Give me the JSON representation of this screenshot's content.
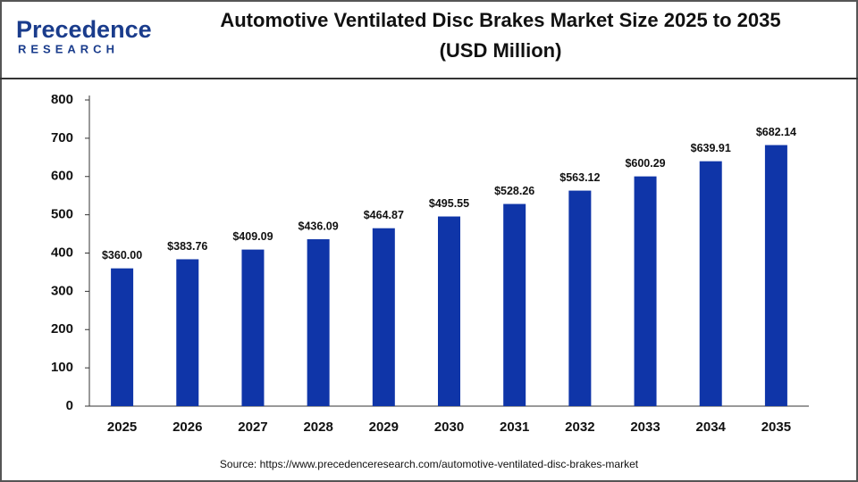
{
  "logo": {
    "name": "Precedence",
    "tagline": "RESEARCH"
  },
  "chart_data": {
    "type": "bar",
    "title": [
      "Automotive Ventilated Disc Brakes Market Size 2025 to 2035",
      "(USD Million)"
    ],
    "categories": [
      "2025",
      "2026",
      "2027",
      "2028",
      "2029",
      "2030",
      "2031",
      "2032",
      "2033",
      "2034",
      "2035"
    ],
    "values": [
      360.0,
      383.76,
      409.09,
      436.09,
      464.87,
      495.55,
      528.26,
      563.12,
      600.29,
      639.91,
      682.14
    ],
    "value_labels": [
      "$360.00",
      "$383.76",
      "$409.09",
      "$436.09",
      "$464.87",
      "$495.55",
      "$528.26",
      "$563.12",
      "$600.29",
      "$639.91",
      "$682.14"
    ],
    "color": "#0f35a8",
    "ylim": [
      0,
      800
    ],
    "yticks": [
      0,
      100,
      200,
      300,
      400,
      500,
      600,
      700,
      800
    ],
    "grid": false,
    "source": "Source: https://www.precedenceresearch.com/automotive-ventilated-disc-brakes-market"
  }
}
